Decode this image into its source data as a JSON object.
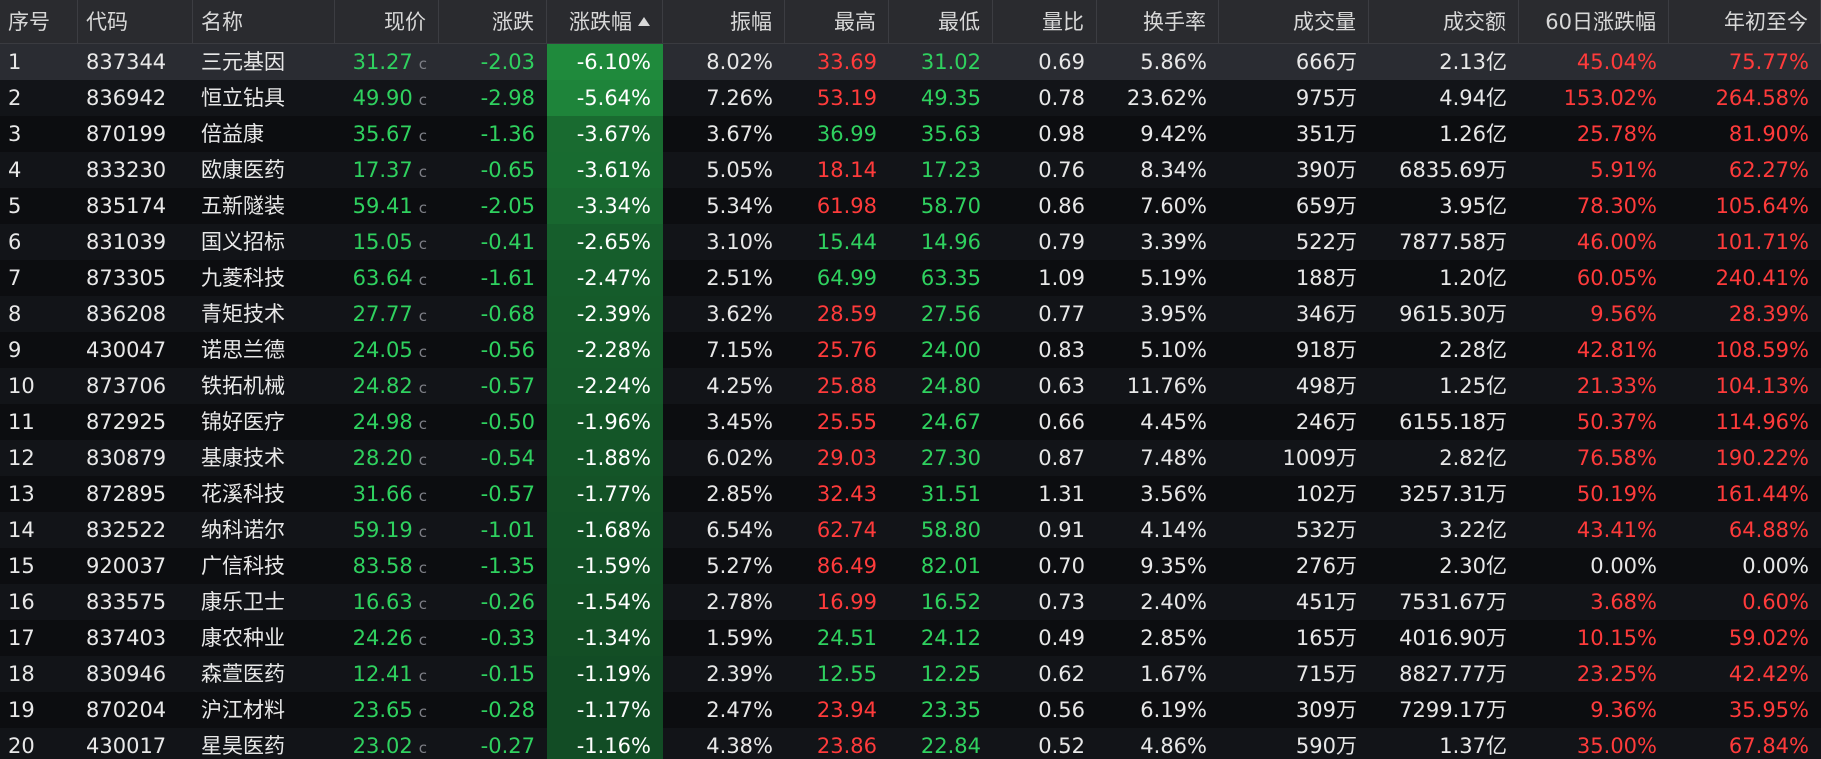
{
  "columns": [
    {
      "key": "seq",
      "label": "序号"
    },
    {
      "key": "code",
      "label": "代码"
    },
    {
      "key": "name",
      "label": "名称"
    },
    {
      "key": "price",
      "label": "现价"
    },
    {
      "key": "change",
      "label": "涨跌"
    },
    {
      "key": "pct",
      "label": "涨跌幅",
      "sorted": "ascending"
    },
    {
      "key": "amp",
      "label": "振幅"
    },
    {
      "key": "high",
      "label": "最高"
    },
    {
      "key": "low",
      "label": "最低"
    },
    {
      "key": "vr",
      "label": "量比"
    },
    {
      "key": "turnover",
      "label": "换手率"
    },
    {
      "key": "vol",
      "label": "成交量"
    },
    {
      "key": "amount",
      "label": "成交额"
    },
    {
      "key": "d60",
      "label": "60日涨跌幅"
    },
    {
      "key": "ytd",
      "label": "年初至今"
    }
  ],
  "price_tag": "c",
  "selected_row": 0,
  "colors": {
    "up": "#ff3b3b",
    "down": "#2fd15f",
    "neutral": "#e8e8e8",
    "pct_bar_strong": "#1f8a3c",
    "pct_bar_weak": "#0f3d1f"
  },
  "rows": [
    {
      "seq": "1",
      "code": "837344",
      "name": "三元基因",
      "price": "31.27",
      "change": "-2.03",
      "pct": "-6.10%",
      "amp": "8.02%",
      "high": "33.69",
      "high_dir": "up",
      "low": "31.02",
      "low_dir": "down",
      "vr": "0.69",
      "turnover": "5.86%",
      "vol": "666万",
      "amount": "2.13亿",
      "d60": "45.04%",
      "d60_dir": "up",
      "ytd": "75.77%",
      "ytd_dir": "up",
      "pct_value": -6.1
    },
    {
      "seq": "2",
      "code": "836942",
      "name": "恒立钻具",
      "price": "49.90",
      "change": "-2.98",
      "pct": "-5.64%",
      "amp": "7.26%",
      "high": "53.19",
      "high_dir": "up",
      "low": "49.35",
      "low_dir": "down",
      "vr": "0.78",
      "turnover": "23.62%",
      "vol": "975万",
      "amount": "4.94亿",
      "d60": "153.02%",
      "d60_dir": "up",
      "ytd": "264.58%",
      "ytd_dir": "up",
      "pct_value": -5.64
    },
    {
      "seq": "3",
      "code": "870199",
      "name": "倍益康",
      "price": "35.67",
      "change": "-1.36",
      "pct": "-3.67%",
      "amp": "3.67%",
      "high": "36.99",
      "high_dir": "down",
      "low": "35.63",
      "low_dir": "down",
      "vr": "0.98",
      "turnover": "9.42%",
      "vol": "351万",
      "amount": "1.26亿",
      "d60": "25.78%",
      "d60_dir": "up",
      "ytd": "81.90%",
      "ytd_dir": "up",
      "pct_value": -3.67
    },
    {
      "seq": "4",
      "code": "833230",
      "name": "欧康医药",
      "price": "17.37",
      "change": "-0.65",
      "pct": "-3.61%",
      "amp": "5.05%",
      "high": "18.14",
      "high_dir": "up",
      "low": "17.23",
      "low_dir": "down",
      "vr": "0.76",
      "turnover": "8.34%",
      "vol": "390万",
      "amount": "6835.69万",
      "d60": "5.91%",
      "d60_dir": "up",
      "ytd": "62.27%",
      "ytd_dir": "up",
      "pct_value": -3.61
    },
    {
      "seq": "5",
      "code": "835174",
      "name": "五新隧装",
      "price": "59.41",
      "change": "-2.05",
      "pct": "-3.34%",
      "amp": "5.34%",
      "high": "61.98",
      "high_dir": "up",
      "low": "58.70",
      "low_dir": "down",
      "vr": "0.86",
      "turnover": "7.60%",
      "vol": "659万",
      "amount": "3.95亿",
      "d60": "78.30%",
      "d60_dir": "up",
      "ytd": "105.64%",
      "ytd_dir": "up",
      "pct_value": -3.34
    },
    {
      "seq": "6",
      "code": "831039",
      "name": "国义招标",
      "price": "15.05",
      "change": "-0.41",
      "pct": "-2.65%",
      "amp": "3.10%",
      "high": "15.44",
      "high_dir": "down",
      "low": "14.96",
      "low_dir": "down",
      "vr": "0.79",
      "turnover": "3.39%",
      "vol": "522万",
      "amount": "7877.58万",
      "d60": "46.00%",
      "d60_dir": "up",
      "ytd": "101.71%",
      "ytd_dir": "up",
      "pct_value": -2.65
    },
    {
      "seq": "7",
      "code": "873305",
      "name": "九菱科技",
      "price": "63.64",
      "change": "-1.61",
      "pct": "-2.47%",
      "amp": "2.51%",
      "high": "64.99",
      "high_dir": "down",
      "low": "63.35",
      "low_dir": "down",
      "vr": "1.09",
      "turnover": "5.19%",
      "vol": "188万",
      "amount": "1.20亿",
      "d60": "60.05%",
      "d60_dir": "up",
      "ytd": "240.41%",
      "ytd_dir": "up",
      "pct_value": -2.47
    },
    {
      "seq": "8",
      "code": "836208",
      "name": "青矩技术",
      "price": "27.77",
      "change": "-0.68",
      "pct": "-2.39%",
      "amp": "3.62%",
      "high": "28.59",
      "high_dir": "up",
      "low": "27.56",
      "low_dir": "down",
      "vr": "0.77",
      "turnover": "3.95%",
      "vol": "346万",
      "amount": "9615.30万",
      "d60": "9.56%",
      "d60_dir": "up",
      "ytd": "28.39%",
      "ytd_dir": "up",
      "pct_value": -2.39
    },
    {
      "seq": "9",
      "code": "430047",
      "name": "诺思兰德",
      "price": "24.05",
      "change": "-0.56",
      "pct": "-2.28%",
      "amp": "7.15%",
      "high": "25.76",
      "high_dir": "up",
      "low": "24.00",
      "low_dir": "down",
      "vr": "0.83",
      "turnover": "5.10%",
      "vol": "918万",
      "amount": "2.28亿",
      "d60": "42.81%",
      "d60_dir": "up",
      "ytd": "108.59%",
      "ytd_dir": "up",
      "pct_value": -2.28
    },
    {
      "seq": "10",
      "code": "873706",
      "name": "铁拓机械",
      "price": "24.82",
      "change": "-0.57",
      "pct": "-2.24%",
      "amp": "4.25%",
      "high": "25.88",
      "high_dir": "up",
      "low": "24.80",
      "low_dir": "down",
      "vr": "0.63",
      "turnover": "11.76%",
      "vol": "498万",
      "amount": "1.25亿",
      "d60": "21.33%",
      "d60_dir": "up",
      "ytd": "104.13%",
      "ytd_dir": "up",
      "pct_value": -2.24
    },
    {
      "seq": "11",
      "code": "872925",
      "name": "锦好医疗",
      "price": "24.98",
      "change": "-0.50",
      "pct": "-1.96%",
      "amp": "3.45%",
      "high": "25.55",
      "high_dir": "up",
      "low": "24.67",
      "low_dir": "down",
      "vr": "0.66",
      "turnover": "4.45%",
      "vol": "246万",
      "amount": "6155.18万",
      "d60": "50.37%",
      "d60_dir": "up",
      "ytd": "114.96%",
      "ytd_dir": "up",
      "pct_value": -1.96
    },
    {
      "seq": "12",
      "code": "830879",
      "name": "基康技术",
      "price": "28.20",
      "change": "-0.54",
      "pct": "-1.88%",
      "amp": "6.02%",
      "high": "29.03",
      "high_dir": "up",
      "low": "27.30",
      "low_dir": "down",
      "vr": "0.87",
      "turnover": "7.48%",
      "vol": "1009万",
      "amount": "2.82亿",
      "d60": "76.58%",
      "d60_dir": "up",
      "ytd": "190.22%",
      "ytd_dir": "up",
      "pct_value": -1.88
    },
    {
      "seq": "13",
      "code": "872895",
      "name": "花溪科技",
      "price": "31.66",
      "change": "-0.57",
      "pct": "-1.77%",
      "amp": "2.85%",
      "high": "32.43",
      "high_dir": "up",
      "low": "31.51",
      "low_dir": "down",
      "vr": "1.31",
      "turnover": "3.56%",
      "vol": "102万",
      "amount": "3257.31万",
      "d60": "50.19%",
      "d60_dir": "up",
      "ytd": "161.44%",
      "ytd_dir": "up",
      "pct_value": -1.77
    },
    {
      "seq": "14",
      "code": "832522",
      "name": "纳科诺尔",
      "price": "59.19",
      "change": "-1.01",
      "pct": "-1.68%",
      "amp": "6.54%",
      "high": "62.74",
      "high_dir": "up",
      "low": "58.80",
      "low_dir": "down",
      "vr": "0.91",
      "turnover": "4.14%",
      "vol": "532万",
      "amount": "3.22亿",
      "d60": "43.41%",
      "d60_dir": "up",
      "ytd": "64.88%",
      "ytd_dir": "up",
      "pct_value": -1.68
    },
    {
      "seq": "15",
      "code": "920037",
      "name": "广信科技",
      "price": "83.58",
      "change": "-1.35",
      "pct": "-1.59%",
      "amp": "5.27%",
      "high": "86.49",
      "high_dir": "up",
      "low": "82.01",
      "low_dir": "down",
      "vr": "0.70",
      "turnover": "9.35%",
      "vol": "276万",
      "amount": "2.30亿",
      "d60": "0.00%",
      "d60_dir": "flat",
      "ytd": "0.00%",
      "ytd_dir": "flat",
      "pct_value": -1.59
    },
    {
      "seq": "16",
      "code": "833575",
      "name": "康乐卫士",
      "price": "16.63",
      "change": "-0.26",
      "pct": "-1.54%",
      "amp": "2.78%",
      "high": "16.99",
      "high_dir": "up",
      "low": "16.52",
      "low_dir": "down",
      "vr": "0.73",
      "turnover": "2.40%",
      "vol": "451万",
      "amount": "7531.67万",
      "d60": "3.68%",
      "d60_dir": "up",
      "ytd": "0.60%",
      "ytd_dir": "up",
      "pct_value": -1.54
    },
    {
      "seq": "17",
      "code": "837403",
      "name": "康农种业",
      "price": "24.26",
      "change": "-0.33",
      "pct": "-1.34%",
      "amp": "1.59%",
      "high": "24.51",
      "high_dir": "down",
      "low": "24.12",
      "low_dir": "down",
      "vr": "0.49",
      "turnover": "2.85%",
      "vol": "165万",
      "amount": "4016.90万",
      "d60": "10.15%",
      "d60_dir": "up",
      "ytd": "59.02%",
      "ytd_dir": "up",
      "pct_value": -1.34
    },
    {
      "seq": "18",
      "code": "830946",
      "name": "森萱医药",
      "price": "12.41",
      "change": "-0.15",
      "pct": "-1.19%",
      "amp": "2.39%",
      "high": "12.55",
      "high_dir": "down",
      "low": "12.25",
      "low_dir": "down",
      "vr": "0.62",
      "turnover": "1.67%",
      "vol": "715万",
      "amount": "8827.77万",
      "d60": "23.25%",
      "d60_dir": "up",
      "ytd": "42.42%",
      "ytd_dir": "up",
      "pct_value": -1.19
    },
    {
      "seq": "19",
      "code": "870204",
      "name": "沪江材料",
      "price": "23.65",
      "change": "-0.28",
      "pct": "-1.17%",
      "amp": "2.47%",
      "high": "23.94",
      "high_dir": "up",
      "low": "23.35",
      "low_dir": "down",
      "vr": "0.56",
      "turnover": "6.19%",
      "vol": "309万",
      "amount": "7299.17万",
      "d60": "9.36%",
      "d60_dir": "up",
      "ytd": "35.95%",
      "ytd_dir": "up",
      "pct_value": -1.17
    },
    {
      "seq": "20",
      "code": "430017",
      "name": "星昊医药",
      "price": "23.02",
      "change": "-0.27",
      "pct": "-1.16%",
      "amp": "4.38%",
      "high": "23.86",
      "high_dir": "up",
      "low": "22.84",
      "low_dir": "down",
      "vr": "0.52",
      "turnover": "4.86%",
      "vol": "590万",
      "amount": "1.37亿",
      "d60": "35.00%",
      "d60_dir": "up",
      "ytd": "67.84%",
      "ytd_dir": "up",
      "pct_value": -1.16
    }
  ]
}
